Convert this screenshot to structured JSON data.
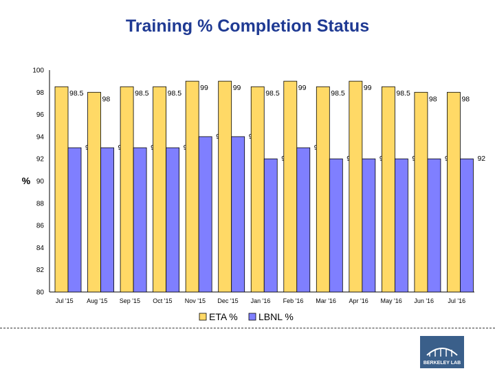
{
  "chart_data": {
    "type": "bar",
    "title": "Training % Completion Status",
    "xlabel": "",
    "ylabel": "%",
    "ylim": [
      80,
      100
    ],
    "yticks": [
      80,
      82,
      84,
      86,
      88,
      90,
      92,
      94,
      96,
      98,
      100
    ],
    "categories": [
      "Jul '15",
      "Aug '15",
      "Sep '15",
      "Oct '15",
      "Nov '15",
      "Dec '15",
      "Jan '16",
      "Feb '16",
      "Mar '16",
      "Apr '16",
      "May '16",
      "Jun '16",
      "Jul '16"
    ],
    "series": [
      {
        "name": "ETA %",
        "color": "#ffd966",
        "values": [
          98.5,
          98,
          98.5,
          98.5,
          99,
          99,
          98.5,
          99,
          98.5,
          99,
          98.5,
          98,
          98
        ]
      },
      {
        "name": "LBNL %",
        "color": "#7f7fff",
        "values": [
          93,
          93,
          93,
          93,
          94,
          94,
          92,
          93,
          92,
          92,
          92,
          92,
          92
        ]
      }
    ],
    "legend_position": "bottom",
    "grid": false
  },
  "logo": {
    "text": "BERKELEY LAB"
  }
}
